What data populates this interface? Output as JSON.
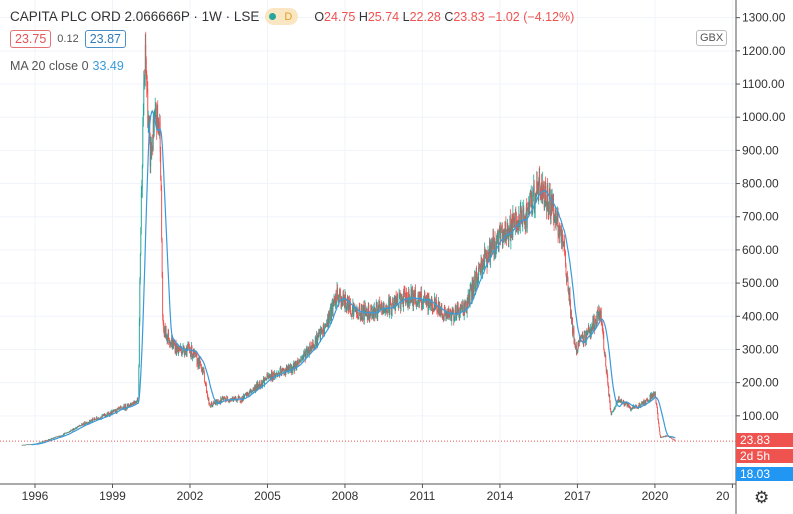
{
  "header": {
    "title": "CAPITA PLC ORD 2.066666P · 1W · LSE",
    "status_badge": "D",
    "open_label": "O",
    "open": "24.75",
    "high_label": "H",
    "high": "25.74",
    "low_label": "L",
    "low": "22.28",
    "close_label": "C",
    "close": "23.83",
    "change": "−1.02 (−4.12%)",
    "sell": "23.75",
    "spread": "0.12",
    "buy": "23.87"
  },
  "indicator": {
    "label": "MA 20 close 0",
    "value": "33.49"
  },
  "currency": "GBX",
  "price_labels": {
    "last": "23.83",
    "countdown": "2d 5h",
    "ma": "18.03"
  },
  "colors": {
    "up": "#26a69a",
    "down": "#ef5350",
    "ma": "#3a9ad9"
  },
  "chart_data": {
    "type": "candlestick",
    "interval": "1W",
    "y_ticks": [
      "1300.00",
      "1200.00",
      "1100.00",
      "1000.00",
      "900.00",
      "800.00",
      "700.00",
      "600.00",
      "500.00",
      "400.00",
      "300.00",
      "200.00",
      "100.00"
    ],
    "x_ticks": [
      "1996",
      "1999",
      "2002",
      "2005",
      "2008",
      "2011",
      "2014",
      "2017",
      "2020",
      "20"
    ],
    "ylim": [
      0,
      1300
    ],
    "anchors": [
      [
        1995.5,
        12
      ],
      [
        1996,
        15
      ],
      [
        1997,
        40
      ],
      [
        1998,
        80
      ],
      [
        1999,
        110
      ],
      [
        1999.6,
        130
      ],
      [
        2000.0,
        150
      ],
      [
        2000.08,
        620
      ],
      [
        2000.18,
        1000
      ],
      [
        2000.28,
        1180
      ],
      [
        2000.45,
        880
      ],
      [
        2000.7,
        1000
      ],
      [
        2000.85,
        950
      ],
      [
        2000.95,
        360
      ],
      [
        2001.5,
        300
      ],
      [
        2002.0,
        300
      ],
      [
        2002.5,
        240
      ],
      [
        2002.75,
        130
      ],
      [
        2003.3,
        150
      ],
      [
        2004,
        150
      ],
      [
        2005,
        215
      ],
      [
        2006,
        245
      ],
      [
        2006.6,
        300
      ],
      [
        2007.2,
        360
      ],
      [
        2007.7,
        460
      ],
      [
        2008.5,
        410
      ],
      [
        2009.5,
        420
      ],
      [
        2010.5,
        460
      ],
      [
        2011.5,
        430
      ],
      [
        2012,
        400
      ],
      [
        2012.7,
        430
      ],
      [
        2013.3,
        560
      ],
      [
        2014,
        640
      ],
      [
        2015,
        700
      ],
      [
        2015.5,
        790
      ],
      [
        2016,
        740
      ],
      [
        2016.5,
        590
      ],
      [
        2016.9,
        300
      ],
      [
        2017.5,
        360
      ],
      [
        2017.9,
        410
      ],
      [
        2018.3,
        100
      ],
      [
        2018.6,
        150
      ],
      [
        2019.1,
        120
      ],
      [
        2019.6,
        140
      ],
      [
        2020.0,
        170
      ],
      [
        2020.2,
        35
      ],
      [
        2020.5,
        40
      ],
      [
        2020.8,
        24
      ]
    ]
  }
}
